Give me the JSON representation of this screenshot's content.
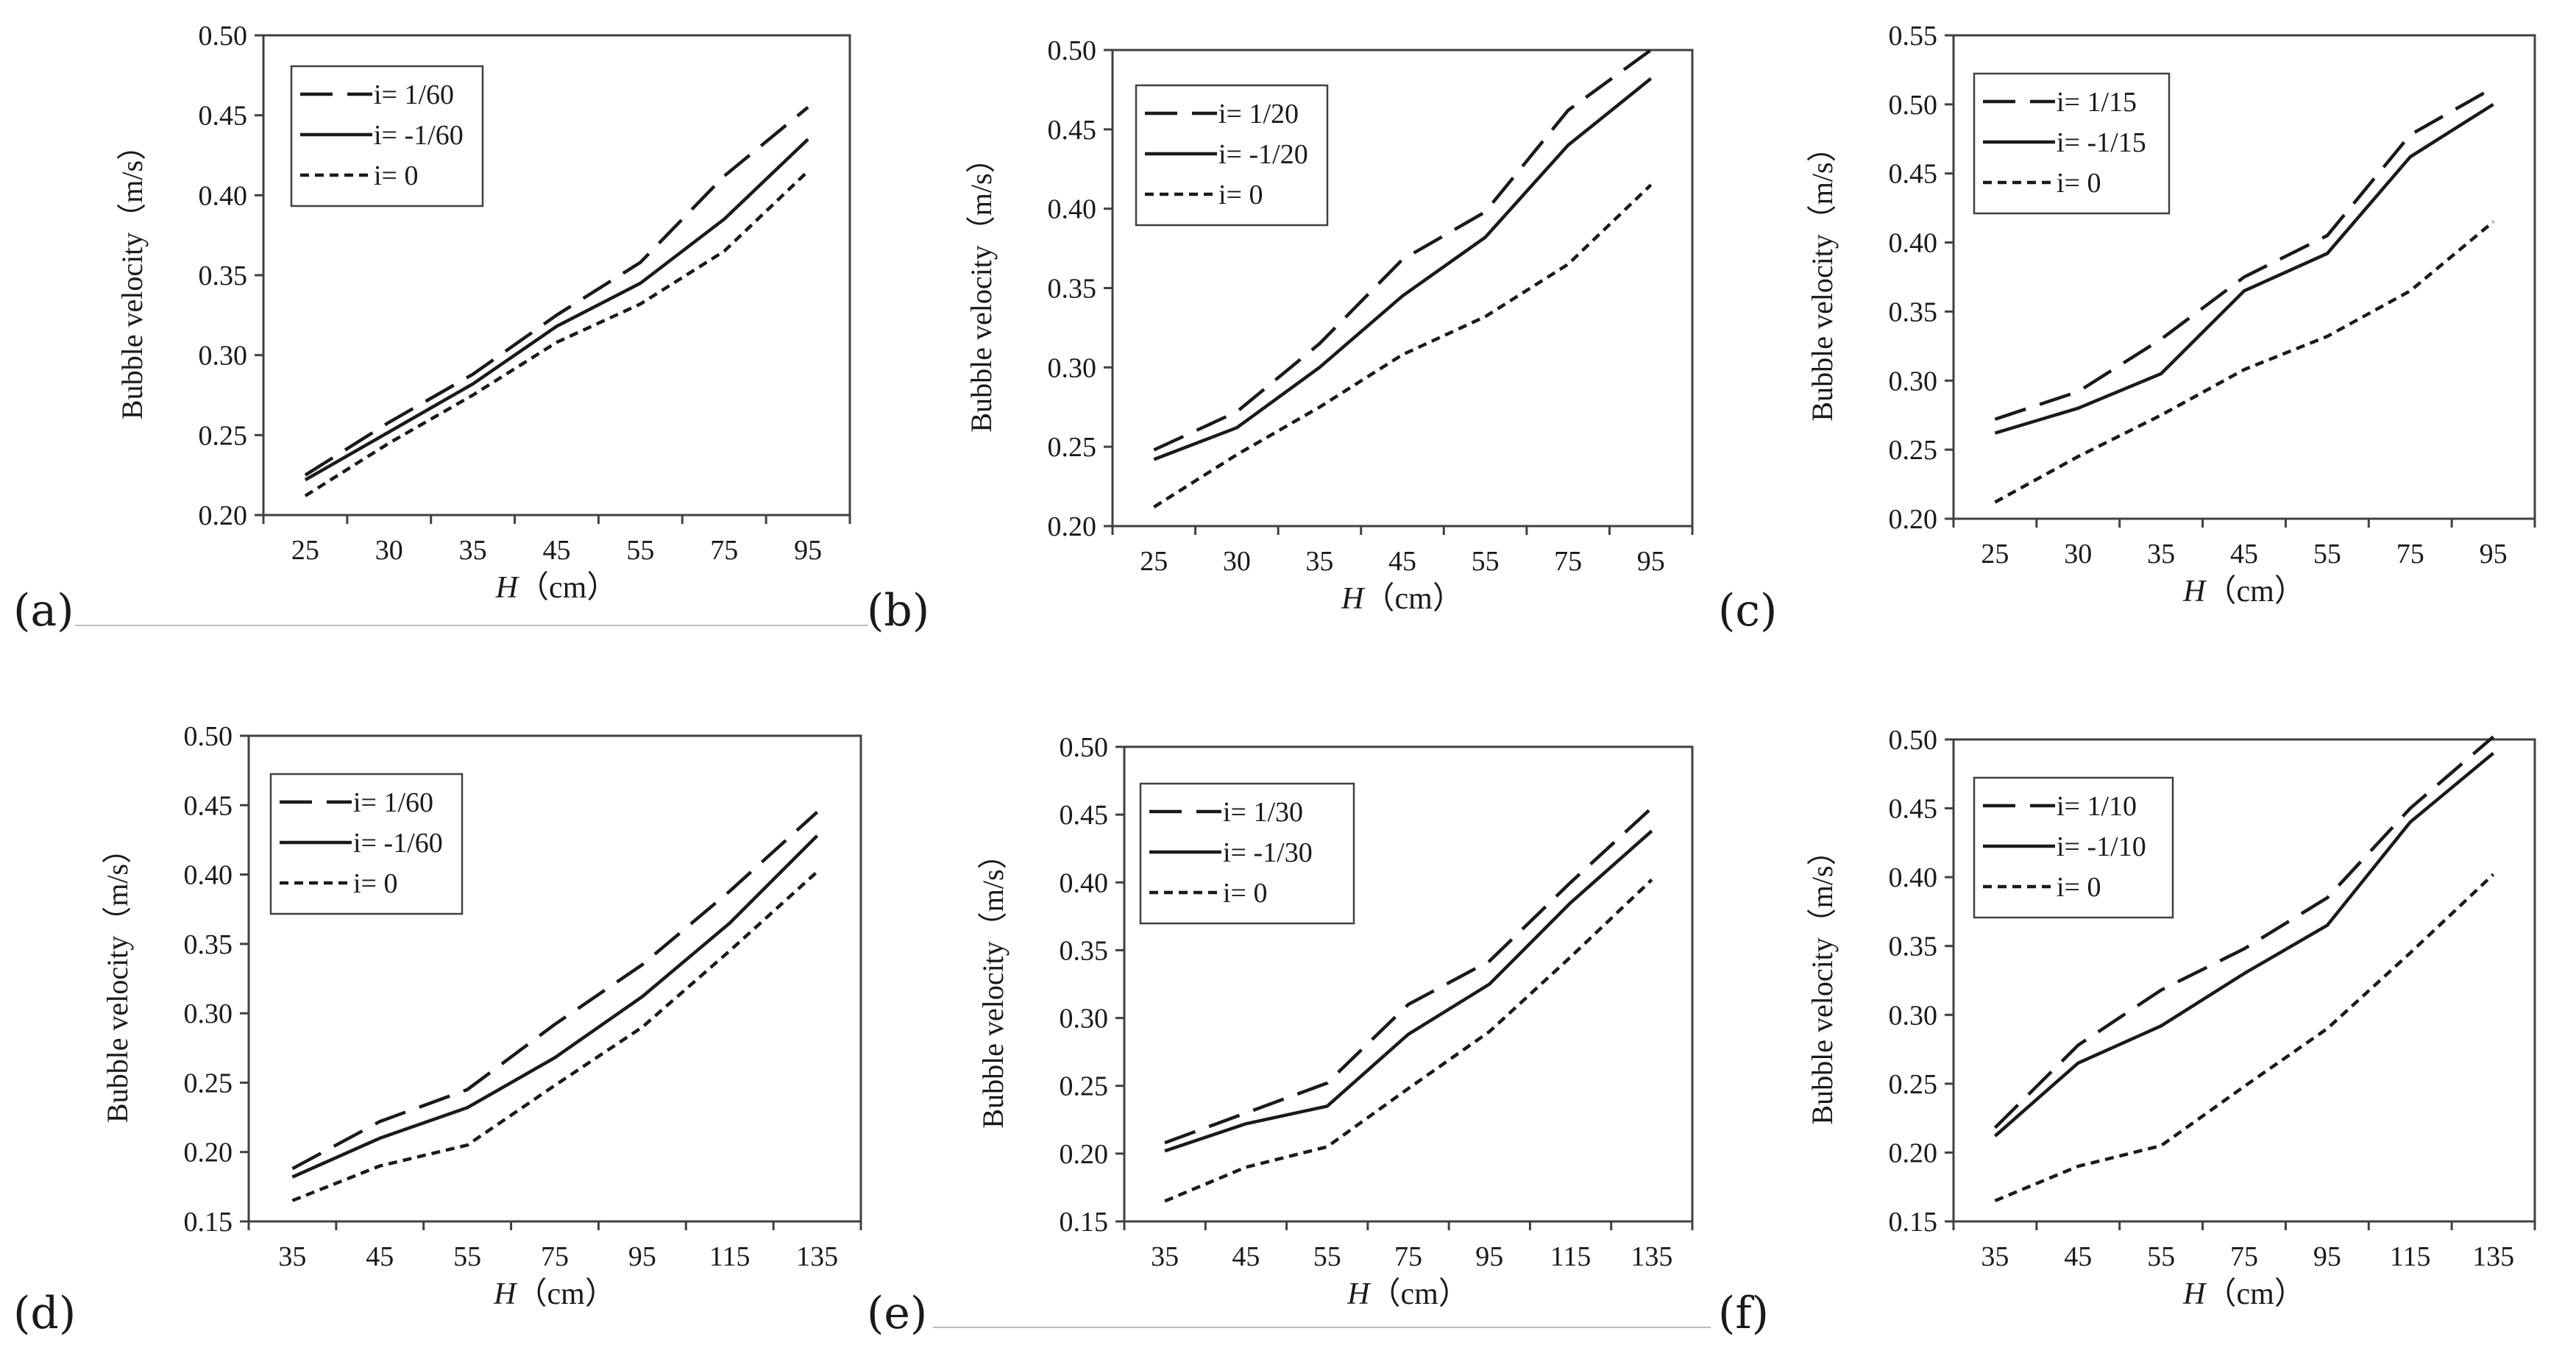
{
  "figure": {
    "colors": {
      "ink": "#1a1a1a",
      "frame": "#404040",
      "underline": "#bdbdbd"
    },
    "panels_order": [
      "a",
      "b",
      "c",
      "d",
      "e",
      "f"
    ]
  },
  "chart_data": [
    {
      "id": "a",
      "panel_label": "(a)",
      "type": "line",
      "xlabel_italic": "H",
      "xlabel_unit": "（cm）",
      "ylabel": "Bubble velocity（m/s）",
      "categories": [
        "25",
        "30",
        "35",
        "45",
        "55",
        "75",
        "95"
      ],
      "ylim": [
        0.2,
        0.5
      ],
      "yticks": [
        "0.20",
        "0.25",
        "0.30",
        "0.35",
        "0.40",
        "0.45",
        "0.50"
      ],
      "legend_position": "top-left",
      "series": [
        {
          "name": "i=  1/60",
          "style": "longdash",
          "values": [
            0.225,
            0.258,
            0.288,
            0.325,
            0.358,
            0.412,
            0.455
          ]
        },
        {
          "name": "i=  -1/60",
          "style": "solid",
          "values": [
            0.222,
            0.252,
            0.282,
            0.318,
            0.345,
            0.385,
            0.435
          ]
        },
        {
          "name": "i=  0",
          "style": "shortdash",
          "values": [
            0.212,
            0.245,
            0.275,
            0.308,
            0.332,
            0.365,
            0.415
          ]
        }
      ]
    },
    {
      "id": "b",
      "panel_label": "(b)",
      "type": "line",
      "xlabel_italic": "H",
      "xlabel_unit": "（cm）",
      "ylabel": "Bubble velocity（m/s）",
      "categories": [
        "25",
        "30",
        "35",
        "45",
        "55",
        "75",
        "95"
      ],
      "ylim": [
        0.2,
        0.5
      ],
      "yticks": [
        "0.20",
        "0.25",
        "0.30",
        "0.35",
        "0.40",
        "0.45",
        "0.50"
      ],
      "legend_position": "top-left",
      "series": [
        {
          "name": "i=  1/20",
          "style": "longdash",
          "values": [
            0.248,
            0.272,
            0.315,
            0.368,
            0.398,
            0.462,
            0.5
          ]
        },
        {
          "name": "i=  -1/20",
          "style": "solid",
          "values": [
            0.242,
            0.262,
            0.3,
            0.345,
            0.382,
            0.44,
            0.482
          ]
        },
        {
          "name": "i=  0",
          "style": "shortdash",
          "values": [
            0.212,
            0.245,
            0.275,
            0.308,
            0.332,
            0.365,
            0.415
          ]
        }
      ]
    },
    {
      "id": "c",
      "panel_label": "(c)",
      "type": "line",
      "xlabel_italic": "H",
      "xlabel_unit": "（cm）",
      "ylabel": "Bubble velocity（m/s）",
      "categories": [
        "25",
        "30",
        "35",
        "45",
        "55",
        "75",
        "95"
      ],
      "ylim": [
        0.2,
        0.55
      ],
      "yticks": [
        "0.20",
        "0.25",
        "0.30",
        "0.35",
        "0.40",
        "0.45",
        "0.50",
        "0.55"
      ],
      "legend_position": "top-left",
      "series": [
        {
          "name": "i=  1/15",
          "style": "longdash",
          "values": [
            0.272,
            0.292,
            0.33,
            0.375,
            0.405,
            0.478,
            0.512
          ]
        },
        {
          "name": "i=  -1/15",
          "style": "solid",
          "values": [
            0.262,
            0.28,
            0.305,
            0.365,
            0.392,
            0.462,
            0.5
          ]
        },
        {
          "name": "i=  0",
          "style": "shortdash",
          "values": [
            0.212,
            0.245,
            0.275,
            0.308,
            0.332,
            0.365,
            0.415
          ]
        }
      ]
    },
    {
      "id": "d",
      "panel_label": "(d)",
      "type": "line",
      "xlabel_italic": "H",
      "xlabel_unit": "（cm）",
      "ylabel": "Bubble velocity（m/s）",
      "categories": [
        "35",
        "45",
        "55",
        "75",
        "95",
        "115",
        "135"
      ],
      "ylim": [
        0.15,
        0.5
      ],
      "yticks": [
        "0.15",
        "0.20",
        "0.25",
        "0.30",
        "0.35",
        "0.40",
        "0.45",
        "0.50"
      ],
      "legend_position": "top-left",
      "series": [
        {
          "name": "i=  1/60",
          "style": "longdash",
          "values": [
            0.188,
            0.222,
            0.245,
            0.292,
            0.335,
            0.388,
            0.445
          ]
        },
        {
          "name": "i=  -1/60",
          "style": "solid",
          "values": [
            0.182,
            0.21,
            0.232,
            0.268,
            0.312,
            0.365,
            0.428
          ]
        },
        {
          "name": "i=  0",
          "style": "shortdash",
          "values": [
            0.165,
            0.19,
            0.205,
            0.248,
            0.29,
            0.345,
            0.402
          ]
        }
      ]
    },
    {
      "id": "e",
      "panel_label": "(e)",
      "type": "line",
      "xlabel_italic": "H",
      "xlabel_unit": "（cm）",
      "ylabel": "Bubble velocity（m/s）",
      "categories": [
        "35",
        "45",
        "55",
        "75",
        "95",
        "115",
        "135"
      ],
      "ylim": [
        0.15,
        0.5
      ],
      "yticks": [
        "0.15",
        "0.20",
        "0.25",
        "0.30",
        "0.35",
        "0.40",
        "0.45",
        "0.50"
      ],
      "legend_position": "top-left",
      "series": [
        {
          "name": "i=  1/30",
          "style": "longdash",
          "values": [
            0.208,
            0.23,
            0.252,
            0.31,
            0.342,
            0.4,
            0.455
          ]
        },
        {
          "name": "i=  -1/30",
          "style": "solid",
          "values": [
            0.202,
            0.222,
            0.235,
            0.288,
            0.325,
            0.385,
            0.438
          ]
        },
        {
          "name": "i=  0",
          "style": "shortdash",
          "values": [
            0.165,
            0.19,
            0.205,
            0.248,
            0.29,
            0.345,
            0.402
          ]
        }
      ]
    },
    {
      "id": "f",
      "panel_label": "(f)",
      "type": "line",
      "xlabel_italic": "H",
      "xlabel_unit": "（cm）",
      "ylabel": "Bubble velocity（m/s）",
      "categories": [
        "35",
        "45",
        "55",
        "75",
        "95",
        "115",
        "135"
      ],
      "ylim": [
        0.15,
        0.5
      ],
      "yticks": [
        "0.15",
        "0.20",
        "0.25",
        "0.30",
        "0.35",
        "0.40",
        "0.45",
        "0.50"
      ],
      "legend_position": "top-left",
      "series": [
        {
          "name": "i=  1/10",
          "style": "longdash",
          "values": [
            0.218,
            0.278,
            0.318,
            0.348,
            0.385,
            0.45,
            0.502
          ]
        },
        {
          "name": "i=  -1/10",
          "style": "solid",
          "values": [
            0.212,
            0.265,
            0.292,
            0.33,
            0.365,
            0.44,
            0.49
          ]
        },
        {
          "name": "i=  0",
          "style": "shortdash",
          "values": [
            0.165,
            0.19,
            0.205,
            0.248,
            0.29,
            0.345,
            0.402
          ]
        }
      ]
    }
  ]
}
